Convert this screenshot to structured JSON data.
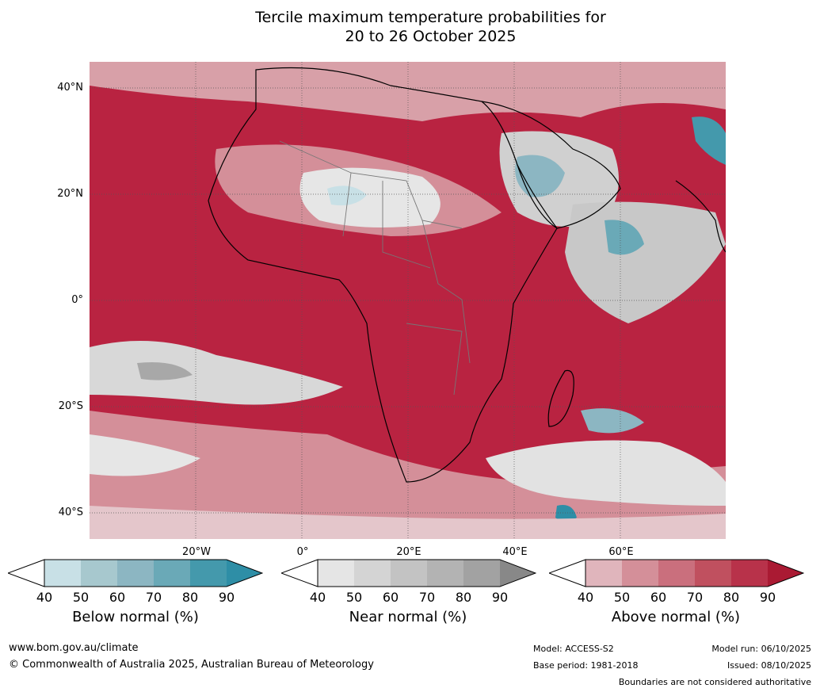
{
  "title_line1": "Tercile maximum temperature probabilities for",
  "title_line2": "20 to 26 October 2025",
  "lat_labels": [
    "40°N",
    "20°N",
    "0°",
    "20°S",
    "40°S"
  ],
  "lon_labels": [
    "20°W",
    "0°",
    "20°E",
    "40°E",
    "60°E"
  ],
  "legend": {
    "below": {
      "label": "Below normal (%)",
      "ticks": [
        "40",
        "50",
        "60",
        "70",
        "80",
        "90"
      ],
      "colors": [
        "#ffffff",
        "#c8e0e6",
        "#a7c8ce",
        "#8cb6c2",
        "#6aa9b7",
        "#4499ac",
        "#2e8ea6"
      ]
    },
    "near": {
      "label": "Near normal (%)",
      "ticks": [
        "40",
        "50",
        "60",
        "70",
        "80",
        "90"
      ],
      "colors": [
        "#ffffff",
        "#e5e5e5",
        "#d4d4d4",
        "#c3c3c3",
        "#b3b3b3",
        "#a2a2a2",
        "#888888"
      ]
    },
    "above": {
      "label": "Above normal (%)",
      "ticks": [
        "40",
        "50",
        "60",
        "70",
        "80",
        "90"
      ],
      "colors": [
        "#ffffff",
        "#e0b5bc",
        "#d48f99",
        "#ca6f7d",
        "#c0505f",
        "#b8324a",
        "#aa1a33"
      ]
    }
  },
  "footer": {
    "website": "www.bom.gov.au/climate",
    "copyright": "© Commonwealth of Australia 2025, Australian Bureau of Meteorology",
    "model": "Model: ACCESS-S2",
    "base_period": "Base period: 1981-2018",
    "model_run": "Model run: 06/10/2025",
    "issued": "Issued: 08/10/2025",
    "disclaimer": "Boundaries are not considered authoritative"
  }
}
